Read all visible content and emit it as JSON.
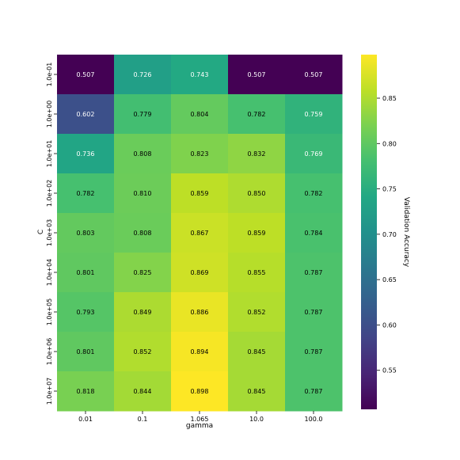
{
  "chart_data": {
    "type": "heatmap",
    "xlabel": "gamma",
    "ylabel": "C",
    "x_categories": [
      "0.01",
      "0.1",
      "1.065",
      "10.0",
      "100.0"
    ],
    "y_categories": [
      "1.0e-01",
      "1.0e+00",
      "1.0e+01",
      "1.0e+02",
      "1.0e+03",
      "1.0e+04",
      "1.0e+05",
      "1.0e+06",
      "1.0e+07"
    ],
    "values": [
      [
        0.507,
        0.726,
        0.743,
        0.507,
        0.507
      ],
      [
        0.602,
        0.779,
        0.804,
        0.782,
        0.759
      ],
      [
        0.736,
        0.808,
        0.823,
        0.832,
        0.769
      ],
      [
        0.782,
        0.81,
        0.859,
        0.85,
        0.782
      ],
      [
        0.803,
        0.808,
        0.867,
        0.859,
        0.784
      ],
      [
        0.801,
        0.825,
        0.869,
        0.855,
        0.787
      ],
      [
        0.793,
        0.849,
        0.886,
        0.852,
        0.787
      ],
      [
        0.801,
        0.852,
        0.894,
        0.845,
        0.787
      ],
      [
        0.818,
        0.844,
        0.898,
        0.845,
        0.787
      ]
    ],
    "value_labels": [
      [
        "0.507",
        "0.726",
        "0.743",
        "0.507",
        "0.507"
      ],
      [
        "0.602",
        "0.779",
        "0.804",
        "0.782",
        "0.759"
      ],
      [
        "0.736",
        "0.808",
        "0.823",
        "0.832",
        "0.769"
      ],
      [
        "0.782",
        "0.810",
        "0.859",
        "0.850",
        "0.782"
      ],
      [
        "0.803",
        "0.808",
        "0.867",
        "0.859",
        "0.784"
      ],
      [
        "0.801",
        "0.825",
        "0.869",
        "0.855",
        "0.787"
      ],
      [
        "0.793",
        "0.849",
        "0.886",
        "0.852",
        "0.787"
      ],
      [
        "0.801",
        "0.852",
        "0.894",
        "0.845",
        "0.787"
      ],
      [
        "0.818",
        "0.844",
        "0.898",
        "0.845",
        "0.787"
      ]
    ],
    "colormap": "viridis",
    "colorbar": {
      "label": "Validation Accuracy",
      "range": [
        0.507,
        0.898
      ],
      "ticks": [
        0.55,
        0.6,
        0.65,
        0.7,
        0.75,
        0.8,
        0.85
      ],
      "tick_labels": [
        "0.55",
        "0.60",
        "0.65",
        "0.70",
        "0.75",
        "0.80",
        "0.85"
      ]
    },
    "annotation_dark_text_threshold": 0.77
  }
}
